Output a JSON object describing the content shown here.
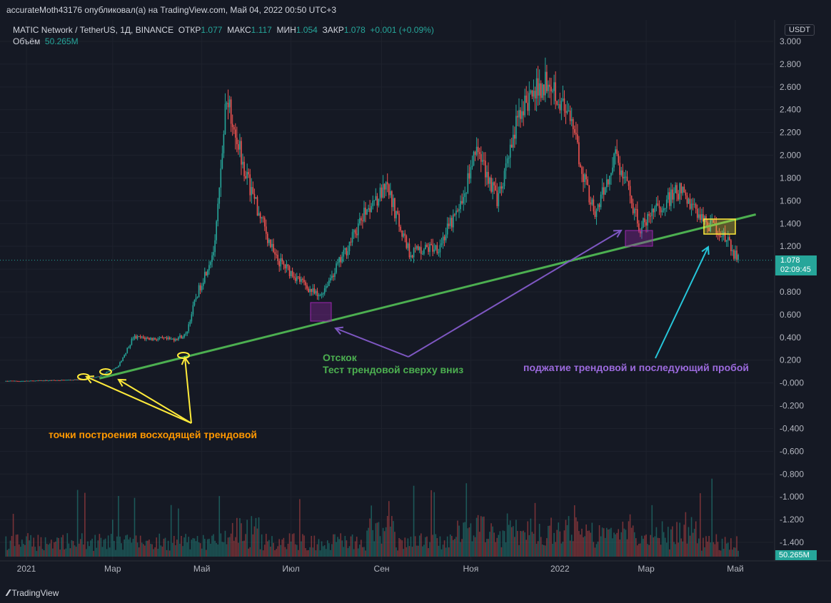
{
  "header": {
    "publisher": "accurateMoth43176 опубликовал(а) на TradingView.com, Май 04, 2022 00:50 UTC+3"
  },
  "legend": {
    "symbol": "MATIC Network / TetherUS, 1Д, BINANCE",
    "open_label": "ОТКР",
    "open": "1.077",
    "high_label": "МАКС",
    "high": "1.117",
    "low_label": "МИН",
    "low": "1.054",
    "close_label": "ЗАКР",
    "close": "1.078",
    "change": "+0.001 (+0.09%)",
    "volume_label": "Объём",
    "volume": "50.265M"
  },
  "price_axis": {
    "currency": "USDT",
    "last_price": "1.078",
    "countdown": "02:09:45",
    "volume_tag": "50.265M"
  },
  "annotations": {
    "points": "точки построения восходящей трендовой",
    "bounce_title": "Отскок",
    "bounce_sub": "Тест трендовой сверху вниз",
    "squeeze": "поджатие трендовой и последующий пробой"
  },
  "footer": {
    "brand": "TradingView"
  },
  "colors": {
    "up": "#26a69a",
    "down": "#ef5350",
    "trend": "#4caf50",
    "points": "#ffeb3b",
    "text_orange": "#ff9800",
    "text_green": "#4caf50",
    "text_purple": "#9c6ade",
    "arrow_cyan": "#26c6da"
  },
  "chart_data": {
    "type": "candlestick",
    "y_ticks": [
      "3.000",
      "2.800",
      "2.600",
      "2.400",
      "2.200",
      "2.000",
      "1.800",
      "1.600",
      "1.400",
      "1.200",
      "1.000",
      "0.800",
      "0.600",
      "0.400",
      "0.200",
      "-0.000",
      "-0.200",
      "-0.400",
      "-0.600",
      "-0.800",
      "-1.000",
      "-1.200",
      "-1.400"
    ],
    "ylim": [
      -1.5,
      3.1
    ],
    "x_labels": [
      "2021",
      "Мар",
      "Май",
      "Июл",
      "Сен",
      "Ноя",
      "2022",
      "Мар",
      "Май"
    ],
    "price_path": [
      {
        "date": "2021-01-01",
        "close": 0.017
      },
      {
        "date": "2021-02-10",
        "close": 0.03
      },
      {
        "date": "2021-02-20",
        "close": 0.06
      },
      {
        "date": "2021-03-05",
        "close": 0.15
      },
      {
        "date": "2021-03-15",
        "close": 0.4
      },
      {
        "date": "2021-04-10",
        "close": 0.38
      },
      {
        "date": "2021-04-20",
        "close": 0.42
      },
      {
        "date": "2021-04-27",
        "close": 0.75
      },
      {
        "date": "2021-05-10",
        "close": 1.2
      },
      {
        "date": "2021-05-18",
        "close": 2.55
      },
      {
        "date": "2021-06-01",
        "close": 1.8
      },
      {
        "date": "2021-06-20",
        "close": 1.1
      },
      {
        "date": "2021-07-20",
        "close": 0.75
      },
      {
        "date": "2021-08-05",
        "close": 1.1
      },
      {
        "date": "2021-08-25",
        "close": 1.6
      },
      {
        "date": "2021-09-05",
        "close": 1.7
      },
      {
        "date": "2021-09-20",
        "close": 1.15
      },
      {
        "date": "2021-10-10",
        "close": 1.2
      },
      {
        "date": "2021-10-25",
        "close": 1.55
      },
      {
        "date": "2021-11-05",
        "close": 2.05
      },
      {
        "date": "2021-11-20",
        "close": 1.6
      },
      {
        "date": "2021-12-05",
        "close": 2.4
      },
      {
        "date": "2021-12-25",
        "close": 2.7
      },
      {
        "date": "2022-01-10",
        "close": 2.2
      },
      {
        "date": "2022-01-25",
        "close": 1.45
      },
      {
        "date": "2022-02-08",
        "close": 2.0
      },
      {
        "date": "2022-02-25",
        "close": 1.35
      },
      {
        "date": "2022-03-10",
        "close": 1.55
      },
      {
        "date": "2022-03-25",
        "close": 1.7
      },
      {
        "date": "2022-04-10",
        "close": 1.4
      },
      {
        "date": "2022-04-20",
        "close": 1.35
      },
      {
        "date": "2022-05-03",
        "close": 1.078
      }
    ],
    "trendline": {
      "start": {
        "date": "2021-02-20",
        "price": 0.04
      },
      "end": {
        "date": "2022-05-15",
        "price": 1.48
      }
    },
    "volume_last": "50.265M"
  }
}
